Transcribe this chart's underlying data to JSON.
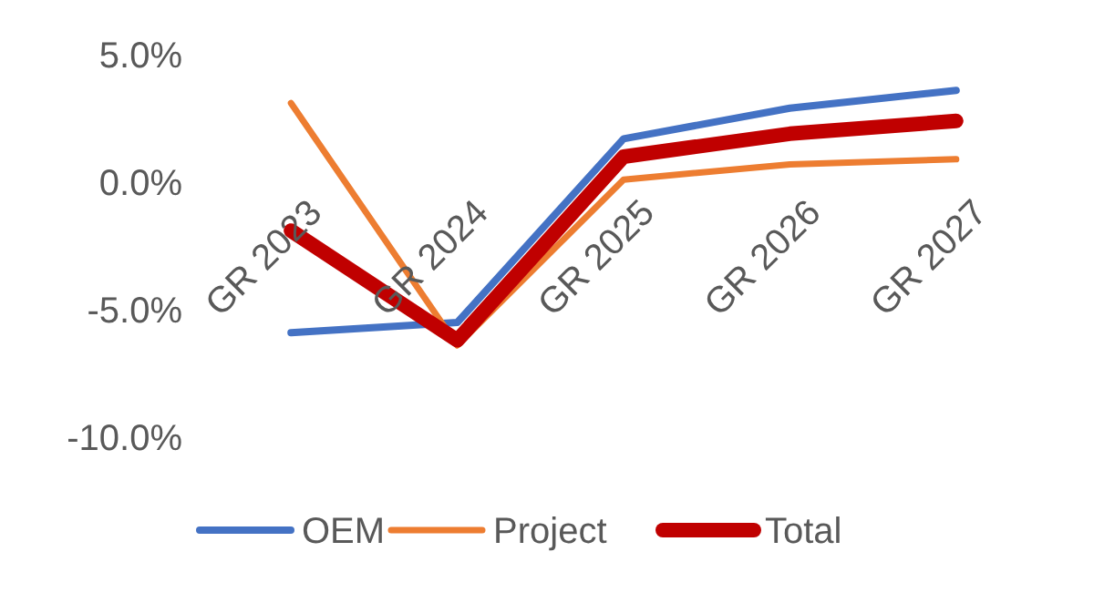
{
  "chart_data": {
    "type": "line",
    "categories": [
      "GR 2023",
      "GR 2024",
      "GR 2025",
      "GR 2026",
      "GR 2027"
    ],
    "series": [
      {
        "name": "OEM",
        "color": "#4472c4",
        "values": [
          -5.9,
          -5.5,
          1.7,
          2.9,
          3.6
        ]
      },
      {
        "name": "Project",
        "color": "#ed7d31",
        "values": [
          3.1,
          -6.4,
          0.1,
          0.7,
          0.9
        ]
      },
      {
        "name": "Total",
        "color": "#c00000",
        "values": [
          -1.9,
          -6.2,
          1.0,
          1.9,
          2.4
        ]
      }
    ],
    "ylim": [
      -10,
      5
    ],
    "yticks": [
      {
        "value": 5,
        "label": "5.0%"
      },
      {
        "value": 0,
        "label": "0.0%"
      },
      {
        "value": -5,
        "label": "-5.0%"
      },
      {
        "value": -10,
        "label": "-10.0%"
      }
    ],
    "legend": "bottom",
    "grid": false,
    "marker": "none",
    "line_style": "solid"
  }
}
